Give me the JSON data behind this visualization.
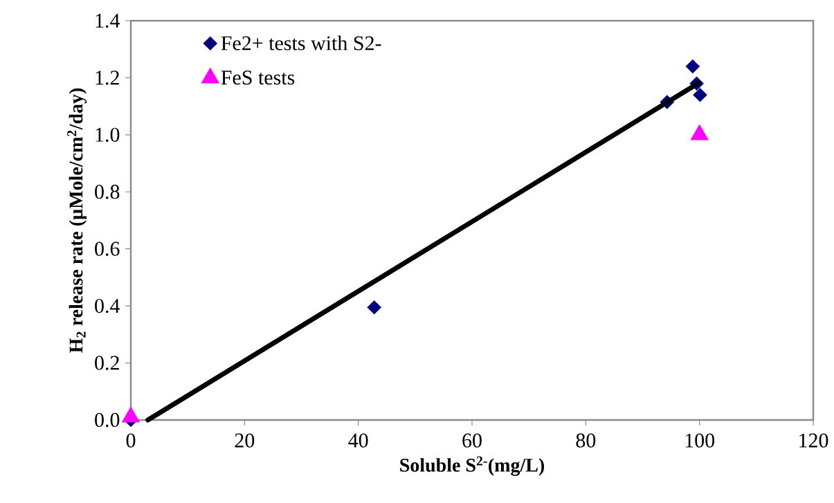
{
  "chart_data": {
    "type": "scatter",
    "xlabel": "Soluble S$^{2-}$(mg/L)",
    "ylabel": "H$_{2}$ release rate (µMole/cm$^{2}$/day)",
    "xlim": [
      0,
      120
    ],
    "xticks": [
      0,
      20,
      40,
      60,
      80,
      100,
      120
    ],
    "ylim": [
      0,
      1.4
    ],
    "yticks": [
      {
        "value": 0,
        "label": "0.0"
      },
      {
        "value": 0.2,
        "label": "0.2"
      },
      {
        "value": 0.4,
        "label": "0.4"
      },
      {
        "value": 0.6,
        "label": "0.6"
      },
      {
        "value": 0.8,
        "label": "0.8"
      },
      {
        "value": 1.0,
        "label": "1.0"
      },
      {
        "value": 1.2,
        "label": "1.2"
      },
      {
        "value": 1.4,
        "label": "1.4"
      }
    ],
    "legend": "top left",
    "series": [
      {
        "name": "Fe2+ tests with S2-",
        "marker": "diamond",
        "color": "#000080",
        "x": [
          0,
          42.8,
          94.3,
          98.8,
          99.5,
          100.1
        ],
        "values": [
          0,
          0.395,
          1.115,
          1.24,
          1.18,
          1.14
        ]
      },
      {
        "name": "FeS tests",
        "marker": "triangle",
        "color": "#ff00ff",
        "x": [
          0,
          100
        ],
        "values": [
          0.01,
          1.0
        ]
      },
      {
        "type": "line",
        "marker": "none",
        "color": "#000000",
        "x": [
          3,
          99.9
        ],
        "values": [
          0,
          1.182
        ]
      }
    ]
  }
}
